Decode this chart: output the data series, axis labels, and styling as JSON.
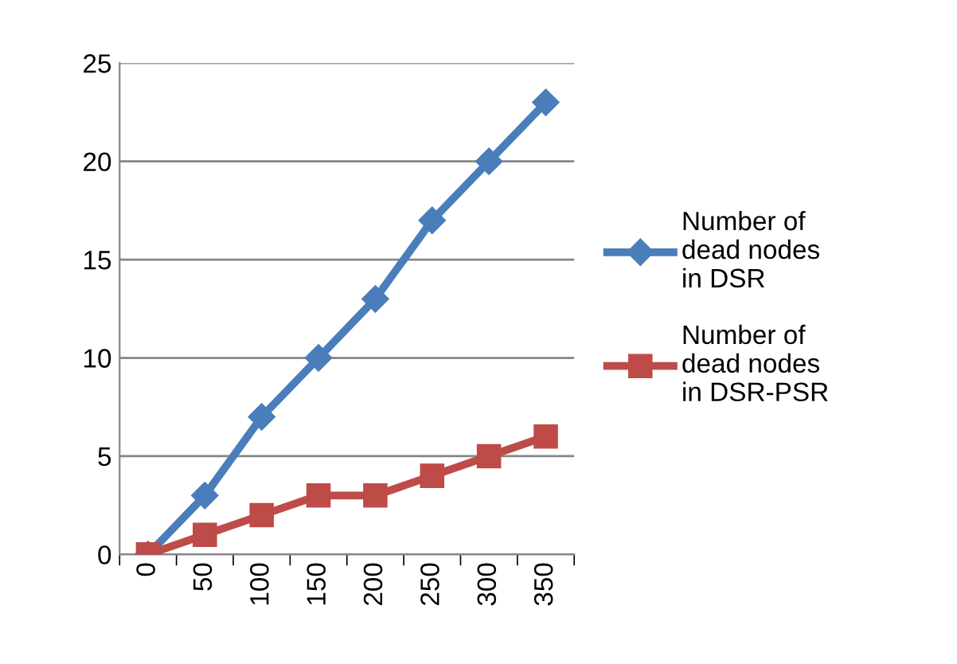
{
  "chart_data": {
    "type": "line",
    "categories": [
      "0",
      "50",
      "100",
      "150",
      "200",
      "250",
      "300",
      "350"
    ],
    "series": [
      {
        "name": "Number of\ndead nodes\nin DSR",
        "color": "#4a7ebb",
        "marker": "diamond",
        "values": [
          0,
          3,
          7,
          10,
          13,
          17,
          20,
          23
        ]
      },
      {
        "name": "Number of\ndead nodes\nin DSR-PSR",
        "color": "#be4b48",
        "marker": "square",
        "values": [
          0,
          1,
          2,
          3,
          3,
          4,
          5,
          6
        ]
      }
    ],
    "ylim": [
      0,
      25
    ],
    "yticks": [
      0,
      5,
      10,
      15,
      20,
      25
    ],
    "grid": "y",
    "legend": "right",
    "line_style": "solid"
  }
}
